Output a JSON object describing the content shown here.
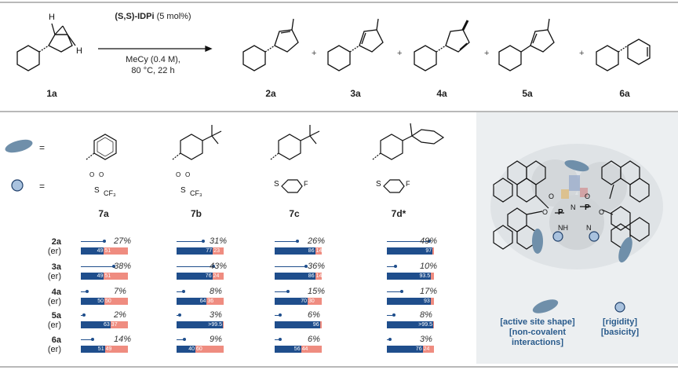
{
  "reaction": {
    "reactant_label": "1a",
    "catalyst": "(S,S)-IDPi",
    "catalyst_loading": "(5 mol%)",
    "solvent": "MeCy (0.4 M),",
    "conditions": "80 °C, 22 h",
    "products": [
      "2a",
      "3a",
      "4a",
      "5a",
      "6a"
    ],
    "plus": "+"
  },
  "legend_left": {
    "equals": "="
  },
  "catalysts": [
    {
      "label": "7a",
      "sulfonyl": "CF3"
    },
    {
      "label": "7b",
      "sulfonyl": "CF3"
    },
    {
      "label": "7c",
      "sulfonyl": "F"
    },
    {
      "label": "7d*",
      "sulfonyl": "F"
    }
  ],
  "rows": [
    {
      "product": "2a",
      "er": "(er)"
    },
    {
      "product": "3a",
      "er": "(er)"
    },
    {
      "product": "4a",
      "er": "(er)"
    },
    {
      "product": "5a",
      "er": "(er)"
    },
    {
      "product": "6a",
      "er": "(er)"
    }
  ],
  "chart_data": {
    "type": "bar",
    "categories": [
      "7a",
      "7b",
      "7c",
      "7d*"
    ],
    "series": [
      {
        "name": "2a",
        "yield": [
          "27%",
          "31%",
          "26%",
          "49%"
        ],
        "yield_pct": [
          27,
          31,
          26,
          49
        ],
        "er": [
          [
            "49",
            "51"
          ],
          [
            "77",
            "23"
          ],
          [
            "86",
            "14"
          ],
          [
            "97",
            ""
          ]
        ],
        "er_major": [
          49,
          77,
          86,
          97
        ]
      },
      {
        "name": "3a",
        "yield": [
          "38%",
          "43%",
          "36%",
          "10%"
        ],
        "yield_pct": [
          38,
          43,
          36,
          10
        ],
        "er": [
          [
            "49",
            "51"
          ],
          [
            "76",
            "24"
          ],
          [
            "86",
            "14"
          ],
          [
            "93.5",
            ""
          ]
        ],
        "er_major": [
          49,
          76,
          86,
          93.5
        ]
      },
      {
        "name": "4a",
        "yield": [
          "7%",
          "8%",
          "15%",
          "17%"
        ],
        "yield_pct": [
          7,
          8,
          15,
          17
        ],
        "er": [
          [
            "50",
            "50"
          ],
          [
            "64",
            "36"
          ],
          [
            "70",
            "30"
          ],
          [
            "93",
            ""
          ]
        ],
        "er_major": [
          50,
          64,
          70,
          93
        ]
      },
      {
        "name": "5a",
        "yield": [
          "2%",
          "3%",
          "6%",
          "8%"
        ],
        "yield_pct": [
          2,
          3,
          6,
          8
        ],
        "er": [
          [
            "63",
            "37"
          ],
          [
            ">99.5",
            ""
          ],
          [
            "96",
            ""
          ],
          [
            ">99.5",
            ""
          ]
        ],
        "er_major": [
          63,
          99.5,
          96,
          99.5
        ]
      },
      {
        "name": "6a",
        "yield": [
          "14%",
          "9%",
          "6%",
          "3%"
        ],
        "yield_pct": [
          14,
          9,
          6,
          3
        ],
        "er": [
          [
            "51",
            "49"
          ],
          [
            "40",
            "60"
          ],
          [
            "56",
            "44"
          ],
          [
            "76",
            "24"
          ]
        ],
        "er_major": [
          51,
          40,
          56,
          76
        ]
      }
    ]
  },
  "panel": {
    "shape_text": "[active site shape]\n[non-covalent\ninteractions]",
    "circle_text": "[rigidity]\n[basicity]",
    "atoms": {
      "O": "O",
      "P": "P",
      "N": "N",
      "NH": "NH"
    }
  },
  "colors": {
    "blue": "#1f4e8c",
    "salmon": "#ef8c80",
    "ellipse": "#6f8faa",
    "circle": "#a9c2de"
  }
}
